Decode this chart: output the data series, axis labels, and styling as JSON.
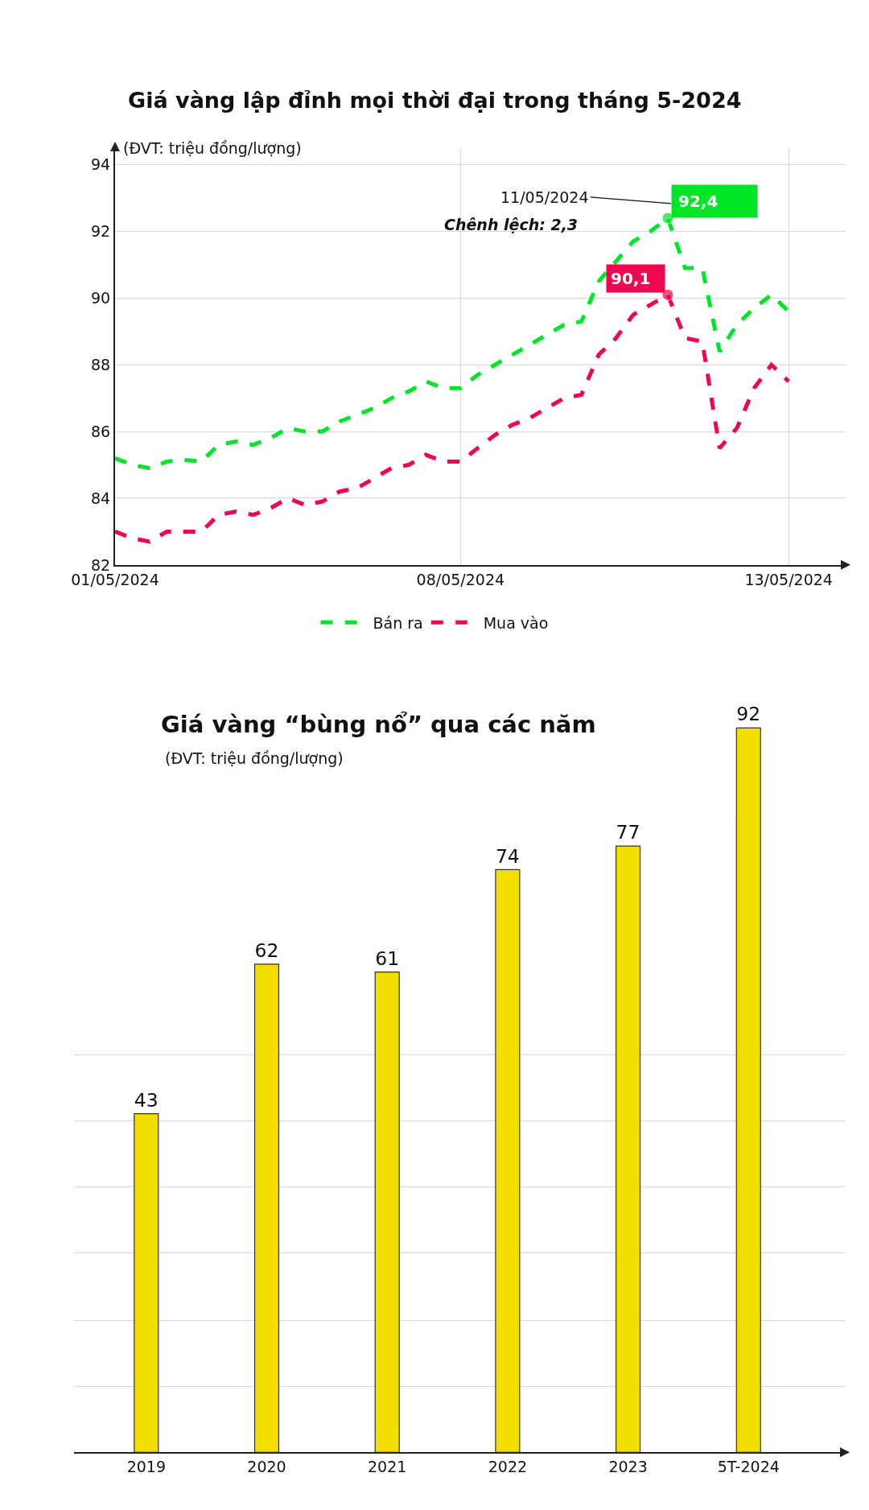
{
  "chart_data": [
    {
      "type": "line",
      "title": "Giá vàng lập đỉnh mọi thời đại trong tháng 5-2024",
      "ylabel": "(ĐVT: triệu đồng/lượng)",
      "categories": [
        "01/05/2024",
        null,
        null,
        null,
        null,
        null,
        null,
        null,
        null,
        null,
        null,
        null,
        null,
        null,
        null,
        null,
        null,
        null,
        null,
        null,
        "08/05/2024",
        null,
        null,
        null,
        null,
        null,
        null,
        null,
        null,
        null,
        null,
        null,
        null,
        null,
        null,
        null,
        null,
        null,
        null,
        "13/05/2024",
        null,
        null,
        null
      ],
      "series": [
        {
          "name": "Bán ra",
          "color": "#00e626",
          "values": [
            85.2,
            85.0,
            84.9,
            85.1,
            85.15,
            85.1,
            85.6,
            85.7,
            85.6,
            85.8,
            86.1,
            86.0,
            86.0,
            86.3,
            86.5,
            86.7,
            87.0,
            87.2,
            87.5,
            87.3,
            87.3,
            87.7,
            88.0,
            88.3,
            88.6,
            88.9,
            89.2,
            89.3,
            90.5,
            91.1,
            91.7,
            92.0,
            92.4,
            90.9,
            90.9,
            88.4,
            89.2,
            89.7,
            90.1,
            89.6,
            null,
            null,
            null
          ],
          "value_labels": [
            null,
            null,
            null,
            null,
            null,
            null,
            null,
            null,
            null,
            null,
            null,
            null,
            null,
            null,
            null,
            null,
            null,
            null,
            null,
            null,
            null,
            null,
            null,
            null,
            null,
            null,
            null,
            null,
            null,
            null,
            null,
            null,
            "92,4",
            null,
            null,
            null,
            null,
            null,
            null,
            null,
            null,
            null,
            null
          ]
        },
        {
          "name": "Mua vào",
          "color": "#f0064f",
          "values": [
            83.0,
            82.8,
            82.7,
            83.0,
            83.0,
            83.0,
            83.5,
            83.6,
            83.5,
            83.7,
            84.0,
            83.8,
            83.9,
            84.2,
            84.3,
            84.6,
            84.9,
            85.0,
            85.3,
            85.1,
            85.1,
            85.5,
            85.9,
            86.2,
            86.4,
            86.7,
            87.0,
            87.1,
            88.3,
            88.8,
            89.5,
            89.8,
            90.1,
            88.8,
            88.7,
            85.5,
            86.1,
            87.3,
            88.0,
            87.5,
            null,
            null,
            null
          ],
          "value_labels": [
            null,
            null,
            null,
            null,
            null,
            null,
            null,
            null,
            null,
            null,
            null,
            null,
            null,
            null,
            null,
            null,
            null,
            null,
            null,
            null,
            null,
            null,
            null,
            null,
            null,
            null,
            null,
            null,
            null,
            null,
            null,
            null,
            "90,1",
            null,
            null,
            null,
            null,
            null,
            null,
            null,
            null,
            null,
            null
          ]
        }
      ],
      "annotations": [
        "11/05/2024",
        "Chênh lệch: 2,3"
      ],
      "ylim": [
        82,
        94.5
      ],
      "yticks": [
        82,
        84,
        86,
        88,
        90,
        92,
        94
      ],
      "grid": true,
      "legend": "bottom",
      "line_style": "dashed"
    },
    {
      "type": "bar",
      "title": "Giá vàng “bùng nổ” qua các năm",
      "subtitle": "(ĐVT: triệu đồng/lượng)",
      "categories": [
        "2019",
        "2020",
        "2021",
        "2022",
        "2023",
        "5T-2024"
      ],
      "values": [
        43,
        62,
        61,
        74,
        77,
        92
      ],
      "color": "#f2df00",
      "data_labels": true,
      "yticks": [
        {
          "value": 8.4,
          "label": null
        },
        {
          "value": 16.8,
          "label": null
        },
        {
          "value": 25.3,
          "label": null
        },
        {
          "value": 33.7,
          "label": null
        },
        {
          "value": 42.1,
          "label": null
        },
        {
          "value": 50.5,
          "label": null
        }
      ],
      "tick_labels": "x",
      "grid": "y"
    }
  ]
}
